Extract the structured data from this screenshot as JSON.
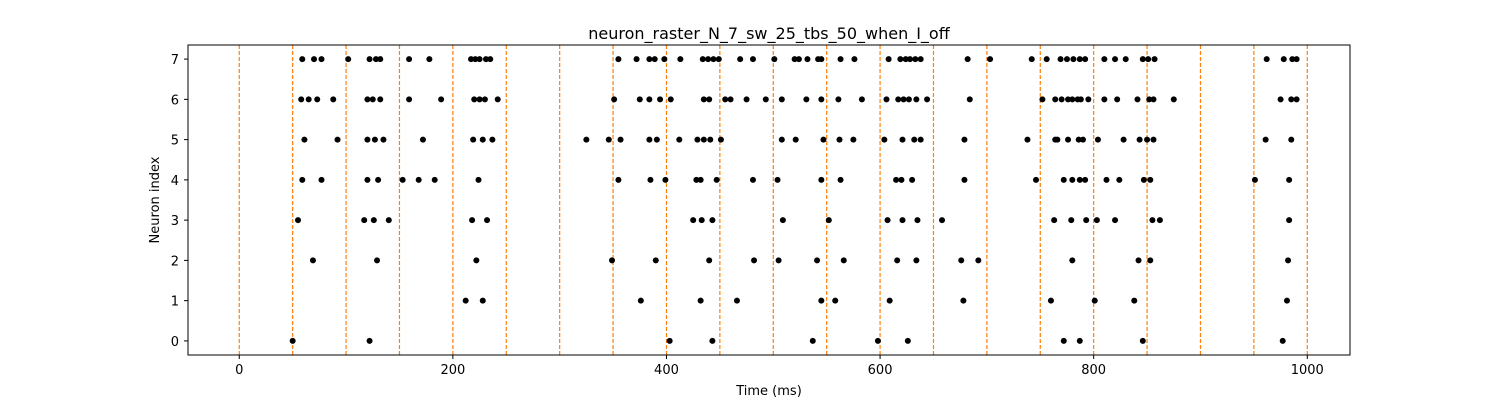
{
  "chart_data": {
    "type": "scatter",
    "title": "neuron_raster_N_7_sw_25_tbs_50_when_I_off",
    "xlabel": "Time (ms)",
    "ylabel": "Neuron index",
    "xlim": [
      -48,
      1040
    ],
    "ylim": [
      -0.35,
      7.35
    ],
    "x_ticks": [
      0,
      200,
      400,
      600,
      800,
      1000
    ],
    "y_ticks": [
      0,
      1,
      2,
      3,
      4,
      5,
      6,
      7
    ],
    "x_tick_labels": [
      "0",
      "200",
      "400",
      "600",
      "800",
      "1000"
    ],
    "y_tick_labels": [
      "0",
      "1",
      "2",
      "3",
      "4",
      "5",
      "6",
      "7"
    ],
    "grid": false,
    "marker_color": "#000000",
    "vline_color": "#ff7f0e",
    "vline_style": "dashed",
    "vlines": [
      0,
      50,
      100,
      150,
      200,
      250,
      300,
      350,
      400,
      450,
      500,
      550,
      600,
      650,
      700,
      750,
      800,
      850,
      900,
      950,
      1000
    ],
    "series": [
      {
        "neuron": 0,
        "spikes": [
          50,
          122,
          403,
          443,
          537,
          598,
          626,
          772,
          787,
          846,
          977
        ]
      },
      {
        "neuron": 1,
        "spikes": [
          212,
          228,
          376,
          432,
          466,
          545,
          558,
          609,
          678,
          760,
          801,
          838,
          981
        ]
      },
      {
        "neuron": 2,
        "spikes": [
          69,
          129,
          222,
          349,
          390,
          440,
          482,
          505,
          541,
          566,
          616,
          634,
          676,
          692,
          780,
          842,
          853,
          982
        ]
      },
      {
        "neuron": 3,
        "spikes": [
          55,
          117,
          126,
          140,
          218,
          232,
          425,
          433,
          443,
          509,
          552,
          607,
          621,
          635,
          658,
          763,
          779,
          793,
          803,
          820,
          855,
          862,
          983
        ]
      },
      {
        "neuron": 4,
        "spikes": [
          59,
          77,
          120,
          130,
          153,
          168,
          183,
          224,
          355,
          385,
          399,
          428,
          432,
          447,
          481,
          504,
          545,
          563,
          615,
          620,
          630,
          679,
          746,
          772,
          780,
          787,
          792,
          812,
          824,
          847,
          853,
          951,
          983
        ]
      },
      {
        "neuron": 5,
        "spikes": [
          61,
          92,
          120,
          127,
          135,
          172,
          219,
          228,
          237,
          325,
          346,
          357,
          384,
          391,
          412,
          429,
          435,
          441,
          451,
          508,
          521,
          547,
          562,
          575,
          604,
          621,
          632,
          638,
          679,
          738,
          764,
          766,
          776,
          786,
          790,
          804,
          828,
          843,
          850,
          856,
          961,
          985
        ]
      },
      {
        "neuron": 6,
        "spikes": [
          58,
          65,
          73,
          88,
          120,
          125,
          132,
          159,
          189,
          220,
          225,
          230,
          242,
          351,
          375,
          384,
          394,
          404,
          435,
          440,
          455,
          460,
          475,
          493,
          508,
          531,
          545,
          561,
          583,
          606,
          617,
          622,
          627,
          634,
          644,
          684,
          752,
          764,
          770,
          776,
          780,
          785,
          788,
          795,
          810,
          822,
          841,
          852,
          856,
          875,
          975,
          985,
          990
        ]
      },
      {
        "neuron": 7,
        "spikes": [
          59,
          70,
          77,
          102,
          122,
          128,
          132,
          159,
          178,
          217,
          221,
          225,
          231,
          235,
          355,
          372,
          384,
          389,
          398,
          413,
          434,
          439,
          444,
          449,
          469,
          481,
          501,
          520,
          524,
          532,
          542,
          545,
          563,
          576,
          608,
          619,
          624,
          628,
          633,
          638,
          682,
          703,
          742,
          756,
          769,
          775,
          781,
          787,
          792,
          810,
          820,
          830,
          846,
          851,
          857,
          962,
          978,
          986,
          990
        ]
      }
    ]
  }
}
